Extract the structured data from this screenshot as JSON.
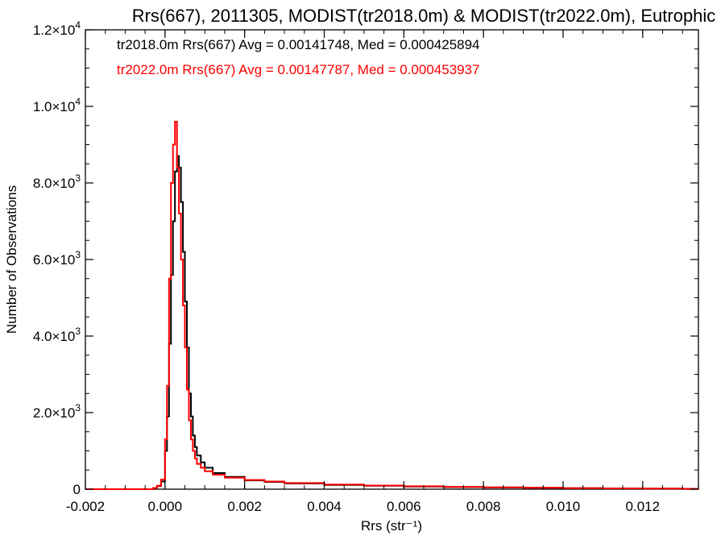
{
  "chart_data": {
    "type": "line",
    "title": "Rrs(667), 2011305, MODIST(tr2018.0m) & MODIST(tr2022.0m), Eutrophic",
    "xlabel": "Rrs (str⁻¹)",
    "ylabel": "Number of Observations",
    "xlim": [
      -0.002,
      0.0134
    ],
    "ylim": [
      0,
      12000
    ],
    "x_ticks": [
      {
        "value": -0.002,
        "label": "-0.002"
      },
      {
        "value": 0.0,
        "label": "0.000"
      },
      {
        "value": 0.002,
        "label": "0.002"
      },
      {
        "value": 0.004,
        "label": "0.004"
      },
      {
        "value": 0.006,
        "label": "0.006"
      },
      {
        "value": 0.008,
        "label": "0.008"
      },
      {
        "value": 0.01,
        "label": "0.010"
      },
      {
        "value": 0.012,
        "label": "0.012"
      }
    ],
    "y_ticks": [
      {
        "value": 0,
        "mantissa": "0",
        "exp": ""
      },
      {
        "value": 2000,
        "mantissa": "2.0×10",
        "exp": "3"
      },
      {
        "value": 4000,
        "mantissa": "4.0×10",
        "exp": "3"
      },
      {
        "value": 6000,
        "mantissa": "6.0×10",
        "exp": "3"
      },
      {
        "value": 8000,
        "mantissa": "8.0×10",
        "exp": "3"
      },
      {
        "value": 10000,
        "mantissa": "1.0×10",
        "exp": "4"
      },
      {
        "value": 12000,
        "mantissa": "1.2×10",
        "exp": "4"
      }
    ],
    "legend": [
      {
        "text": "tr2018.0m Rrs(667) Avg = 0.00141748, Med = 0.000425894",
        "color": "#000000"
      },
      {
        "text": "tr2022.0m Rrs(667) Avg = 0.00147787, Med = 0.000453937",
        "color": "#ff0000"
      }
    ],
    "series": [
      {
        "color": "#000000",
        "points": [
          [
            -0.002,
            0
          ],
          [
            -0.0004,
            0
          ],
          [
            -0.0003,
            30
          ],
          [
            -0.0002,
            80
          ],
          [
            -0.0001,
            200
          ],
          [
            0.0,
            1000
          ],
          [
            5e-05,
            1900
          ],
          [
            0.0001,
            3800
          ],
          [
            0.00015,
            5600
          ],
          [
            0.0002,
            7000
          ],
          [
            0.00025,
            8300
          ],
          [
            0.0003,
            8700
          ],
          [
            0.00035,
            8400
          ],
          [
            0.0004,
            7500
          ],
          [
            0.00045,
            6200
          ],
          [
            0.0005,
            4900
          ],
          [
            0.00055,
            3700
          ],
          [
            0.0006,
            2500
          ],
          [
            0.00065,
            1900
          ],
          [
            0.0007,
            1400
          ],
          [
            0.00075,
            1100
          ],
          [
            0.0008,
            880
          ],
          [
            0.0009,
            700
          ],
          [
            0.001,
            560
          ],
          [
            0.0012,
            420
          ],
          [
            0.0015,
            320
          ],
          [
            0.002,
            230
          ],
          [
            0.0025,
            190
          ],
          [
            0.003,
            150
          ],
          [
            0.004,
            110
          ],
          [
            0.005,
            90
          ],
          [
            0.006,
            70
          ],
          [
            0.007,
            55
          ],
          [
            0.008,
            45
          ],
          [
            0.009,
            35
          ],
          [
            0.01,
            25
          ],
          [
            0.011,
            18
          ],
          [
            0.012,
            12
          ],
          [
            0.013,
            8
          ],
          [
            0.0134,
            5
          ]
        ]
      },
      {
        "color": "#ff0000",
        "points": [
          [
            -0.002,
            0
          ],
          [
            -0.0004,
            0
          ],
          [
            -0.0003,
            30
          ],
          [
            -0.0002,
            90
          ],
          [
            -0.0001,
            250
          ],
          [
            0.0,
            1300
          ],
          [
            5e-05,
            2700
          ],
          [
            0.0001,
            5500
          ],
          [
            0.00015,
            8000
          ],
          [
            0.0002,
            9000
          ],
          [
            0.00025,
            9600
          ],
          [
            0.0003,
            8400
          ],
          [
            0.00035,
            7200
          ],
          [
            0.0004,
            6000
          ],
          [
            0.00045,
            4800
          ],
          [
            0.0005,
            3700
          ],
          [
            0.00055,
            2600
          ],
          [
            0.0006,
            1800
          ],
          [
            0.00065,
            1300
          ],
          [
            0.0007,
            1000
          ],
          [
            0.00075,
            800
          ],
          [
            0.0008,
            660
          ],
          [
            0.0009,
            560
          ],
          [
            0.001,
            470
          ],
          [
            0.0012,
            380
          ],
          [
            0.0015,
            300
          ],
          [
            0.002,
            240
          ],
          [
            0.0025,
            200
          ],
          [
            0.003,
            160
          ],
          [
            0.004,
            120
          ],
          [
            0.005,
            95
          ],
          [
            0.006,
            75
          ],
          [
            0.007,
            60
          ],
          [
            0.008,
            48
          ],
          [
            0.009,
            38
          ],
          [
            0.01,
            28
          ],
          [
            0.011,
            20
          ],
          [
            0.012,
            14
          ],
          [
            0.013,
            9
          ],
          [
            0.0134,
            6
          ]
        ]
      }
    ]
  }
}
